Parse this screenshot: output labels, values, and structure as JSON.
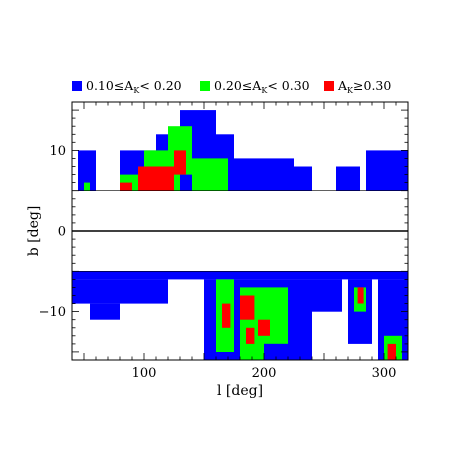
{
  "chart_data": {
    "type": "heatmap",
    "xlabel": "l [deg]",
    "ylabel": "b [deg]",
    "xlim": [
      40,
      320
    ],
    "ylim": [
      -16,
      16
    ],
    "x_ticks": [
      100,
      200,
      300
    ],
    "y_ticks": [
      10,
      0,
      -10
    ],
    "x_tick_labels": [
      "100",
      "200",
      "300"
    ],
    "y_tick_labels": [
      "10",
      "0",
      "−10"
    ],
    "excluded_band_b": [
      -5,
      5
    ],
    "reference_line_b": 0,
    "grid": false,
    "legend_position": "top",
    "legend": [
      {
        "key": "low",
        "prefix": "0.10≤A",
        "sub": "K",
        "suffix": "< 0.20",
        "color": "#0000ff"
      },
      {
        "key": "mid",
        "prefix": "0.20≤A",
        "sub": "K",
        "suffix": "< 0.30",
        "color": "#00ff00"
      },
      {
        "key": "high",
        "prefix": "A",
        "sub": "K",
        "suffix": "≥0.30",
        "color": "#ff0000"
      }
    ],
    "regions": [
      {
        "class": "low",
        "l": [
          130,
          160
        ],
        "b": [
          5,
          15
        ]
      },
      {
        "class": "low",
        "l": [
          110,
          175
        ],
        "b": [
          5,
          12
        ]
      },
      {
        "class": "low",
        "l": [
          80,
          110
        ],
        "b": [
          5,
          10
        ]
      },
      {
        "class": "low",
        "l": [
          160,
          225
        ],
        "b": [
          5,
          9
        ]
      },
      {
        "class": "low",
        "l": [
          45,
          60
        ],
        "b": [
          5,
          10
        ]
      },
      {
        "class": "low",
        "l": [
          225,
          240
        ],
        "b": [
          5,
          8
        ]
      },
      {
        "class": "low",
        "l": [
          260,
          280
        ],
        "b": [
          5,
          8
        ]
      },
      {
        "class": "low",
        "l": [
          285,
          320
        ],
        "b": [
          5,
          10
        ]
      },
      {
        "class": "mid",
        "l": [
          120,
          140
        ],
        "b": [
          7,
          13
        ]
      },
      {
        "class": "mid",
        "l": [
          100,
          130
        ],
        "b": [
          5,
          10
        ]
      },
      {
        "class": "mid",
        "l": [
          140,
          170
        ],
        "b": [
          5,
          9
        ]
      },
      {
        "class": "mid",
        "l": [
          80,
          95
        ],
        "b": [
          5,
          7
        ]
      },
      {
        "class": "mid",
        "l": [
          50,
          55
        ],
        "b": [
          5,
          6
        ]
      },
      {
        "class": "high",
        "l": [
          95,
          125
        ],
        "b": [
          5,
          8
        ]
      },
      {
        "class": "high",
        "l": [
          125,
          135
        ],
        "b": [
          7,
          10
        ]
      },
      {
        "class": "high",
        "l": [
          80,
          90
        ],
        "b": [
          5,
          6
        ]
      },
      {
        "class": "low",
        "l": [
          40,
          320
        ],
        "b": [
          -6,
          -5
        ]
      },
      {
        "class": "low",
        "l": [
          40,
          120
        ],
        "b": [
          -9,
          -6
        ]
      },
      {
        "class": "low",
        "l": [
          55,
          80
        ],
        "b": [
          -11,
          -9
        ]
      },
      {
        "class": "low",
        "l": [
          150,
          240
        ],
        "b": [
          -16,
          -6
        ]
      },
      {
        "class": "low",
        "l": [
          240,
          265
        ],
        "b": [
          -10,
          -6
        ]
      },
      {
        "class": "low",
        "l": [
          270,
          290
        ],
        "b": [
          -14,
          -6
        ]
      },
      {
        "class": "low",
        "l": [
          295,
          320
        ],
        "b": [
          -16,
          -6
        ]
      },
      {
        "class": "mid",
        "l": [
          160,
          175
        ],
        "b": [
          -15,
          -6
        ]
      },
      {
        "class": "mid",
        "l": [
          180,
          200
        ],
        "b": [
          -16,
          -7
        ]
      },
      {
        "class": "mid",
        "l": [
          200,
          220
        ],
        "b": [
          -14,
          -7
        ]
      },
      {
        "class": "mid",
        "l": [
          275,
          285
        ],
        "b": [
          -10,
          -7
        ]
      },
      {
        "class": "mid",
        "l": [
          300,
          315
        ],
        "b": [
          -16,
          -13
        ]
      },
      {
        "class": "high",
        "l": [
          165,
          172
        ],
        "b": [
          -12,
          -9
        ]
      },
      {
        "class": "high",
        "l": [
          180,
          192
        ],
        "b": [
          -11,
          -8
        ]
      },
      {
        "class": "high",
        "l": [
          185,
          192
        ],
        "b": [
          -14,
          -12
        ]
      },
      {
        "class": "high",
        "l": [
          195,
          205
        ],
        "b": [
          -13,
          -11
        ]
      },
      {
        "class": "high",
        "l": [
          278,
          283
        ],
        "b": [
          -9,
          -7
        ]
      },
      {
        "class": "high",
        "l": [
          303,
          310
        ],
        "b": [
          -16,
          -14
        ]
      }
    ]
  }
}
